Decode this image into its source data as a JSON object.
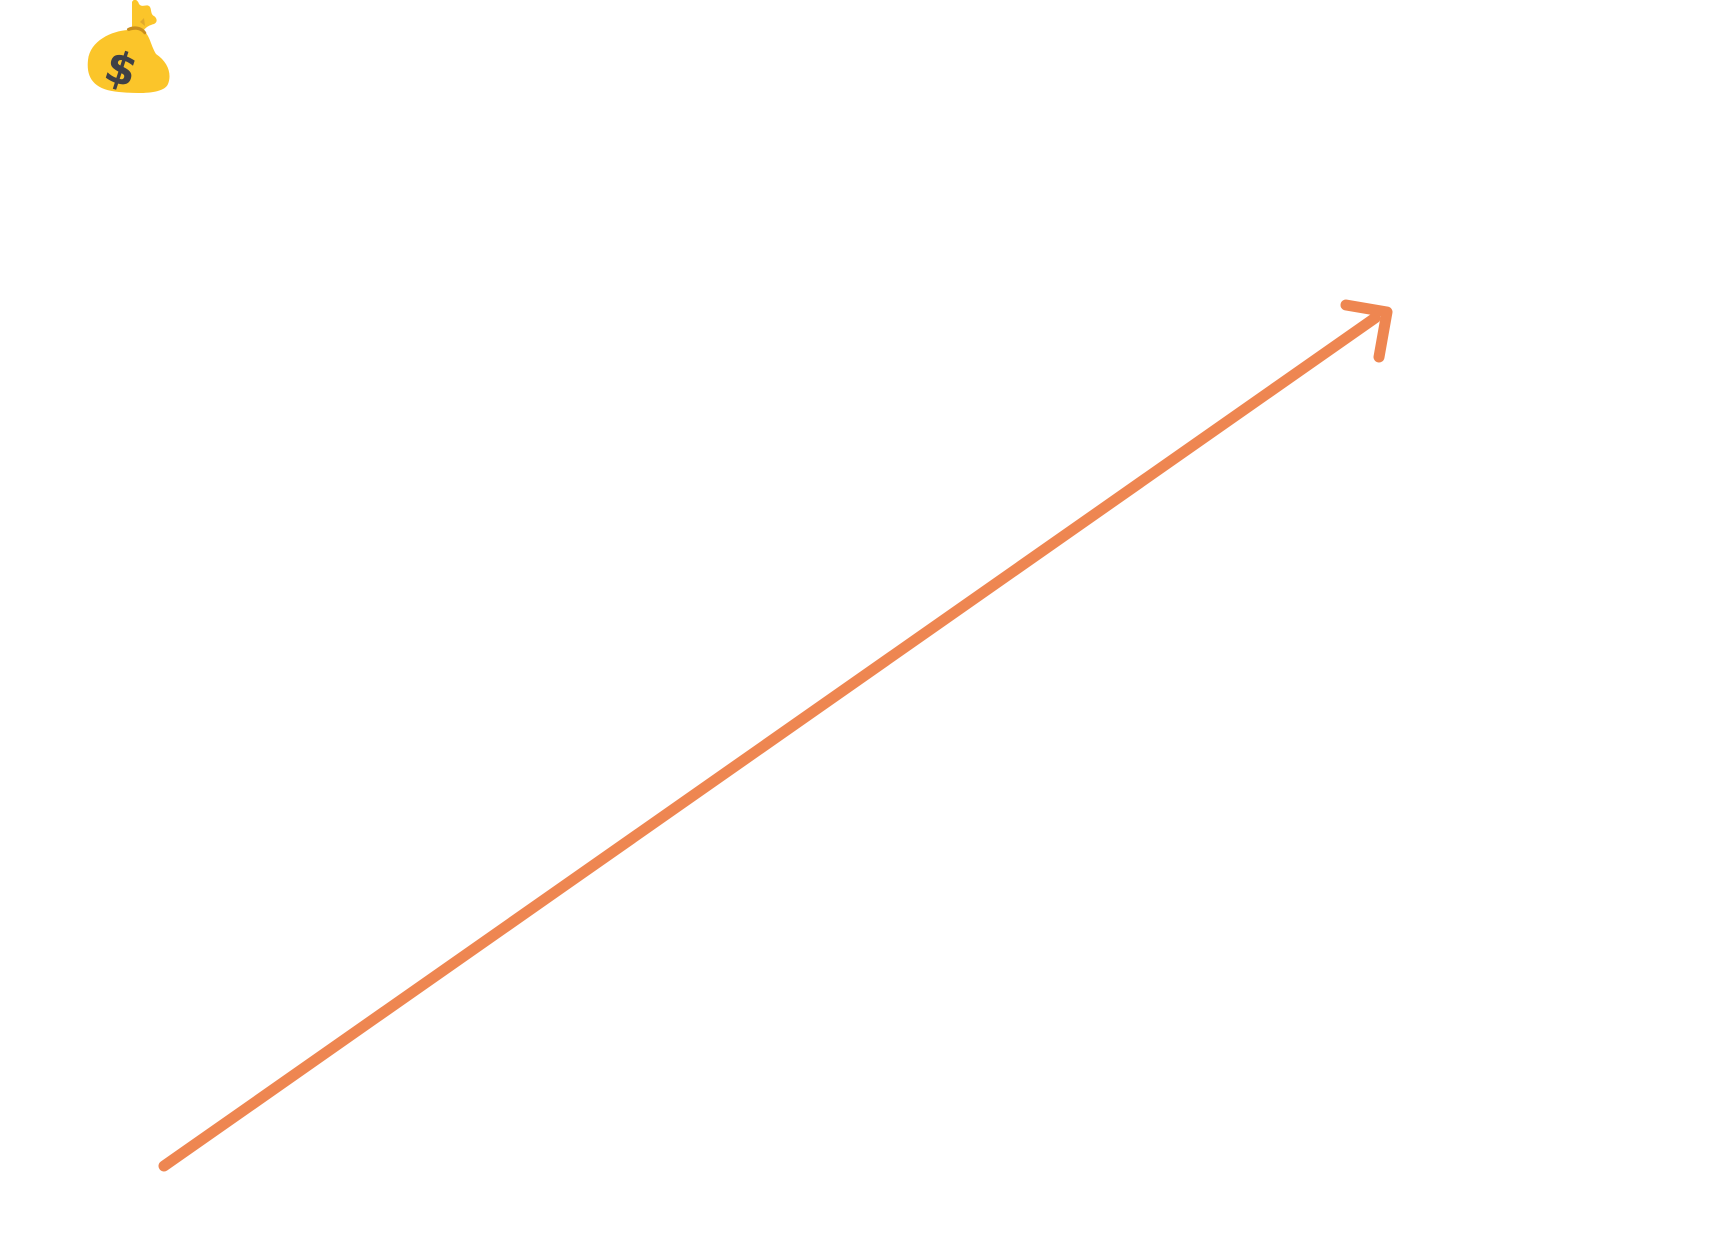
{
  "icon": {
    "name": "money-bag-icon",
    "symbol": "$",
    "bag_color": "#FBC52A",
    "tie_color": "#C98E1E",
    "symbol_color": "#3F4046"
  },
  "arrow": {
    "name": "trend-up-arrow",
    "direction": "up-right",
    "color": "#EE8651"
  },
  "colors": {
    "background": "#FFFFFF"
  }
}
